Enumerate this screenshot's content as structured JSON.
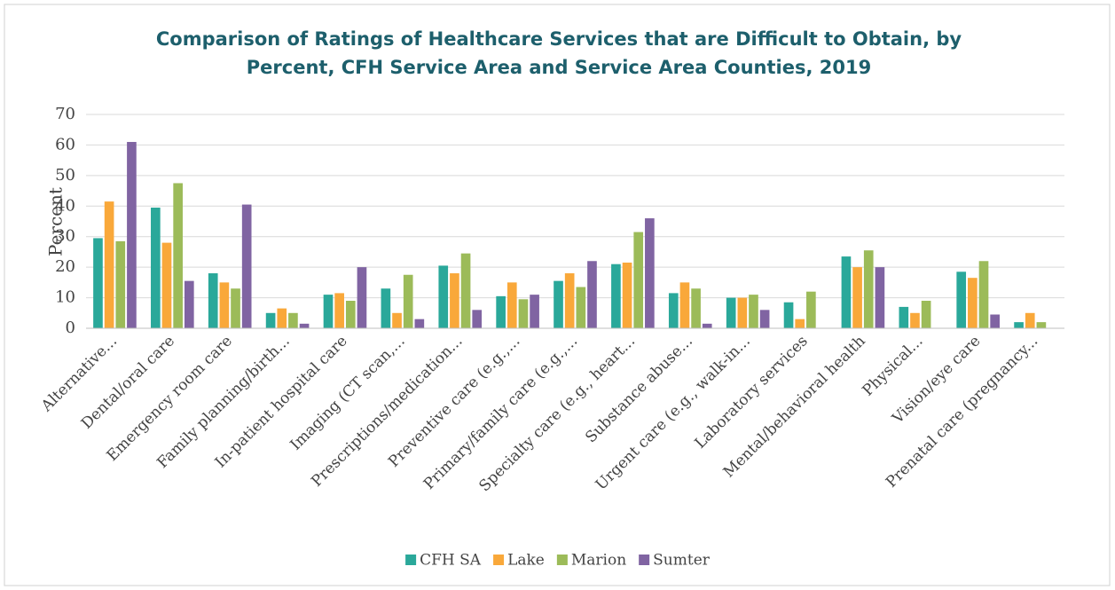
{
  "chart_data": {
    "type": "bar",
    "title": "Comparison of Ratings of Healthcare Services that are Difficult to Obtain, by Percent, CFH Service Area and Service Area Counties, 2019",
    "y_label": "Percent",
    "categories": [
      "Alternative...",
      "Dental/oral care",
      "Emergency room care",
      "Family planning/birth...",
      "In-patient hospital care",
      "Imaging (CT scan,...",
      "Prescriptions/medication...",
      "Preventive care (e.g.,...",
      "Primary/family care (e.g.,...",
      "Specialty care (e.g., heart...",
      "Substance abuse...",
      "Urgent care (e.g., walk-in...",
      "Laboratory services",
      "Mental/behavioral health",
      "Physical...",
      "Vision/eye care",
      "Prenatal care (pregnancy..."
    ],
    "series": [
      {
        "name": "CFH SA",
        "color": "#2aa89a",
        "values": [
          29.5,
          39.5,
          18,
          5,
          11,
          13,
          20.5,
          10.5,
          15.5,
          21,
          11.5,
          10,
          8.5,
          23.5,
          7,
          18.5,
          2
        ]
      },
      {
        "name": "Lake",
        "color": "#f9a83a",
        "values": [
          41.5,
          28,
          15,
          6.5,
          11.5,
          5,
          18,
          15,
          18,
          21.5,
          15,
          10,
          3,
          20,
          5,
          16.5,
          5
        ]
      },
      {
        "name": "Marion",
        "color": "#9cbb59",
        "values": [
          28.5,
          47.5,
          13,
          5,
          9,
          17.5,
          24.5,
          9.5,
          13.5,
          31.5,
          13,
          11,
          12,
          25.5,
          9,
          22,
          2
        ]
      },
      {
        "name": "Sumter",
        "color": "#8064a2",
        "values": [
          61,
          15.5,
          40.5,
          1.5,
          20,
          3,
          6,
          11,
          22,
          36,
          1.5,
          6,
          null,
          20,
          null,
          4.5,
          null
        ]
      }
    ],
    "ylim": [
      0,
      70
    ],
    "yticks": [
      0,
      10,
      20,
      30,
      40,
      50,
      60,
      70
    ],
    "grid": true,
    "legend": "bottom"
  }
}
